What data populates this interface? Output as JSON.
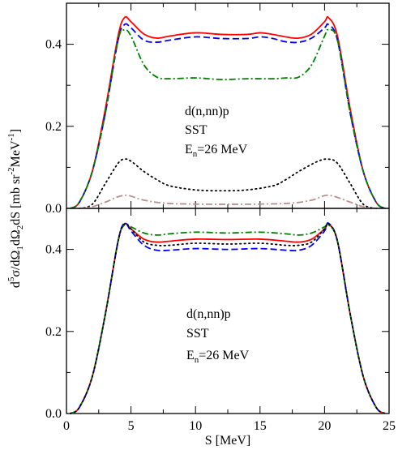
{
  "chart_data": [
    {
      "type": "line",
      "xlim": [
        0,
        25
      ],
      "ylim": [
        0,
        0.5
      ],
      "x_ticks": [
        "0",
        "5",
        "10",
        "15",
        "20",
        "25"
      ],
      "y_ticks": [
        "0.0",
        "0.2",
        "0.4"
      ],
      "grid": false,
      "annotations": [
        "d(n,nn)p",
        "SST"
      ],
      "energy_label": {
        "main": "E",
        "sub": "n",
        "rest": "=26 MeV"
      },
      "series": [
        {
          "color": "#ff0000",
          "dash": "solid",
          "points": [
            [
              0.3,
              0
            ],
            [
              1,
              0.015
            ],
            [
              2,
              0.09
            ],
            [
              3,
              0.24
            ],
            [
              4,
              0.42
            ],
            [
              4.5,
              0.465
            ],
            [
              5,
              0.455
            ],
            [
              6,
              0.425
            ],
            [
              7,
              0.415
            ],
            [
              8,
              0.42
            ],
            [
              10,
              0.428
            ],
            [
              12,
              0.424
            ],
            [
              14,
              0.424
            ],
            [
              15,
              0.428
            ],
            [
              16,
              0.424
            ],
            [
              17,
              0.418
            ],
            [
              18,
              0.415
            ],
            [
              19,
              0.425
            ],
            [
              20,
              0.455
            ],
            [
              20.3,
              0.465
            ],
            [
              21,
              0.42
            ],
            [
              22,
              0.24
            ],
            [
              23,
              0.09
            ],
            [
              24,
              0.015
            ],
            [
              24.7,
              0
            ]
          ]
        },
        {
          "color": "#0000ff",
          "dash": "dashed",
          "points": [
            [
              0.3,
              0
            ],
            [
              1,
              0.015
            ],
            [
              2,
              0.09
            ],
            [
              3,
              0.23
            ],
            [
              4,
              0.41
            ],
            [
              4.5,
              0.448
            ],
            [
              5,
              0.44
            ],
            [
              6,
              0.41
            ],
            [
              7,
              0.405
            ],
            [
              8,
              0.41
            ],
            [
              10,
              0.418
            ],
            [
              12,
              0.414
            ],
            [
              14,
              0.414
            ],
            [
              15,
              0.418
            ],
            [
              16,
              0.414
            ],
            [
              17,
              0.406
            ],
            [
              18,
              0.405
            ],
            [
              19,
              0.415
            ],
            [
              20,
              0.44
            ],
            [
              20.3,
              0.448
            ],
            [
              21,
              0.41
            ],
            [
              22,
              0.23
            ],
            [
              23,
              0.09
            ],
            [
              24,
              0.015
            ],
            [
              24.7,
              0
            ]
          ]
        },
        {
          "color": "#008000",
          "dash": "dashdot",
          "points": [
            [
              0.3,
              0
            ],
            [
              1,
              0.015
            ],
            [
              2,
              0.09
            ],
            [
              3,
              0.23
            ],
            [
              4,
              0.41
            ],
            [
              4.5,
              0.435
            ],
            [
              5,
              0.42
            ],
            [
              6,
              0.35
            ],
            [
              7,
              0.32
            ],
            [
              8,
              0.316
            ],
            [
              10,
              0.318
            ],
            [
              12,
              0.314
            ],
            [
              14,
              0.316
            ],
            [
              16,
              0.316
            ],
            [
              17,
              0.318
            ],
            [
              18,
              0.32
            ],
            [
              19,
              0.35
            ],
            [
              20,
              0.42
            ],
            [
              20.3,
              0.435
            ],
            [
              21,
              0.41
            ],
            [
              22,
              0.23
            ],
            [
              23,
              0.09
            ],
            [
              24,
              0.015
            ],
            [
              24.7,
              0
            ]
          ]
        },
        {
          "color": "#000000",
          "dash": "dotted",
          "points": [
            [
              1,
              0
            ],
            [
              2,
              0.01
            ],
            [
              3,
              0.06
            ],
            [
              4,
              0.11
            ],
            [
              4.5,
              0.12
            ],
            [
              5,
              0.115
            ],
            [
              6,
              0.09
            ],
            [
              7,
              0.07
            ],
            [
              8,
              0.055
            ],
            [
              10,
              0.045
            ],
            [
              12,
              0.043
            ],
            [
              14,
              0.045
            ],
            [
              16,
              0.055
            ],
            [
              17,
              0.07
            ],
            [
              18,
              0.09
            ],
            [
              19.5,
              0.115
            ],
            [
              20.3,
              0.12
            ],
            [
              21,
              0.11
            ],
            [
              22,
              0.06
            ],
            [
              23,
              0.01
            ],
            [
              24,
              0
            ]
          ]
        },
        {
          "color": "#bc8f8f",
          "dash": "dashdot",
          "points": [
            [
              1,
              0
            ],
            [
              2,
              0.004
            ],
            [
              3,
              0.015
            ],
            [
              4.5,
              0.032
            ],
            [
              6,
              0.02
            ],
            [
              8,
              0.012
            ],
            [
              12.5,
              0.01
            ],
            [
              17,
              0.012
            ],
            [
              19,
              0.02
            ],
            [
              20.3,
              0.032
            ],
            [
              22,
              0.015
            ],
            [
              23,
              0.004
            ],
            [
              24,
              0
            ]
          ]
        }
      ]
    },
    {
      "type": "line",
      "xlim": [
        0,
        25
      ],
      "ylim": [
        0,
        0.5
      ],
      "x_ticks": [
        "0",
        "5",
        "10",
        "15",
        "20",
        "25"
      ],
      "y_ticks": [
        "0.0",
        "0.2",
        "0.4"
      ],
      "grid": false,
      "annotations": [
        "d(n,nn)p",
        "SST"
      ],
      "energy_label": {
        "main": "E",
        "sub": "n",
        "rest": "=26 MeV"
      },
      "xlabel": "S [MeV]",
      "series": [
        {
          "color": "#ff0000",
          "dash": "solid",
          "points": [
            [
              0.3,
              0
            ],
            [
              1,
              0.015
            ],
            [
              2,
              0.09
            ],
            [
              3,
              0.24
            ],
            [
              4,
              0.42
            ],
            [
              4.5,
              0.462
            ],
            [
              5,
              0.45
            ],
            [
              6,
              0.425
            ],
            [
              7,
              0.418
            ],
            [
              8,
              0.42
            ],
            [
              10,
              0.425
            ],
            [
              12.5,
              0.424
            ],
            [
              15,
              0.425
            ],
            [
              17,
              0.42
            ],
            [
              18,
              0.418
            ],
            [
              19,
              0.425
            ],
            [
              20,
              0.45
            ],
            [
              20.3,
              0.462
            ],
            [
              21,
              0.42
            ],
            [
              22,
              0.24
            ],
            [
              23,
              0.09
            ],
            [
              24,
              0.015
            ],
            [
              24.7,
              0
            ]
          ]
        },
        {
          "color": "#0000ff",
          "dash": "dashed",
          "points": [
            [
              0.3,
              0
            ],
            [
              1,
              0.015
            ],
            [
              2,
              0.09
            ],
            [
              3,
              0.24
            ],
            [
              4,
              0.42
            ],
            [
              4.5,
              0.464
            ],
            [
              5,
              0.445
            ],
            [
              6,
              0.41
            ],
            [
              7,
              0.398
            ],
            [
              8,
              0.398
            ],
            [
              10,
              0.402
            ],
            [
              12.5,
              0.4
            ],
            [
              15,
              0.402
            ],
            [
              17,
              0.398
            ],
            [
              18,
              0.398
            ],
            [
              19,
              0.41
            ],
            [
              20,
              0.445
            ],
            [
              20.3,
              0.464
            ],
            [
              21,
              0.42
            ],
            [
              22,
              0.24
            ],
            [
              23,
              0.09
            ],
            [
              24,
              0.015
            ],
            [
              24.7,
              0
            ]
          ]
        },
        {
          "color": "#008000",
          "dash": "dashdot",
          "points": [
            [
              0.3,
              0
            ],
            [
              1,
              0.015
            ],
            [
              2,
              0.09
            ],
            [
              3,
              0.24
            ],
            [
              4,
              0.42
            ],
            [
              4.5,
              0.46
            ],
            [
              5,
              0.455
            ],
            [
              6,
              0.44
            ],
            [
              7,
              0.435
            ],
            [
              8,
              0.438
            ],
            [
              10,
              0.442
            ],
            [
              12.5,
              0.44
            ],
            [
              15,
              0.442
            ],
            [
              17,
              0.438
            ],
            [
              18,
              0.435
            ],
            [
              19,
              0.44
            ],
            [
              20,
              0.455
            ],
            [
              20.3,
              0.46
            ],
            [
              21,
              0.42
            ],
            [
              22,
              0.24
            ],
            [
              23,
              0.09
            ],
            [
              24,
              0.015
            ],
            [
              24.7,
              0
            ]
          ]
        },
        {
          "color": "#000000",
          "dash": "dotted",
          "points": [
            [
              0.3,
              0
            ],
            [
              1,
              0.015
            ],
            [
              2,
              0.09
            ],
            [
              3,
              0.24
            ],
            [
              4,
              0.42
            ],
            [
              4.5,
              0.462
            ],
            [
              5,
              0.45
            ],
            [
              6,
              0.418
            ],
            [
              7,
              0.41
            ],
            [
              8,
              0.41
            ],
            [
              10,
              0.415
            ],
            [
              12.5,
              0.413
            ],
            [
              15,
              0.415
            ],
            [
              17,
              0.41
            ],
            [
              18,
              0.41
            ],
            [
              19,
              0.418
            ],
            [
              20,
              0.45
            ],
            [
              20.3,
              0.462
            ],
            [
              21,
              0.42
            ],
            [
              22,
              0.24
            ],
            [
              23,
              0.09
            ],
            [
              24,
              0.015
            ],
            [
              24.7,
              0
            ]
          ]
        }
      ]
    }
  ],
  "shared_ylabel": {
    "parts": [
      "d",
      "5",
      "σ/dΩ",
      "1",
      "dΩ",
      "2",
      "dS [mb sr",
      "-2",
      "MeV",
      "-1",
      "]"
    ]
  }
}
